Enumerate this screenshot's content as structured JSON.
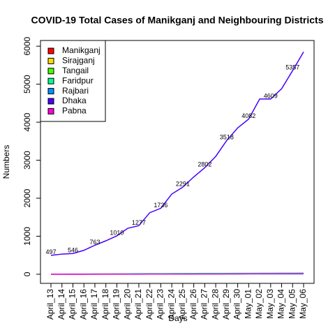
{
  "chart_data": {
    "type": "line",
    "title": "COVID-19 Total Cases of Manikganj and Neighbouring Districts",
    "x_label": "Days",
    "y_label": "Numbers",
    "categories": [
      "April_13",
      "April_14",
      "April_15",
      "April_16",
      "April_17",
      "April_18",
      "April_19",
      "April_20",
      "April_21",
      "April_22",
      "April_23",
      "April_24",
      "April_25",
      "April_26",
      "April_27",
      "April_28",
      "April_29",
      "April_30",
      "May_01",
      "May_02",
      "May_03",
      "May_04",
      "May_05",
      "May_06"
    ],
    "ylim": [
      -240,
      6150
    ],
    "yticks": [
      0,
      1000,
      2000,
      3000,
      4000,
      5000,
      6000
    ],
    "legend": "top-left",
    "series": [
      {
        "name": "Manikganj",
        "color": "#FF0000",
        "values": [
          1,
          1,
          2,
          2,
          3,
          3,
          4,
          5,
          6,
          7,
          8,
          9,
          10,
          11,
          12,
          13,
          14,
          15,
          16,
          17,
          18,
          19,
          20,
          21
        ]
      },
      {
        "name": "Sirajganj",
        "color": "#FFDB00",
        "values": [
          0,
          0,
          1,
          1,
          1,
          2,
          2,
          3,
          3,
          4,
          5,
          6,
          7,
          8,
          9,
          10,
          11,
          12,
          13,
          14,
          15,
          16,
          18,
          19
        ]
      },
      {
        "name": "Tangail",
        "color": "#49FF00",
        "values": [
          2,
          3,
          3,
          4,
          5,
          6,
          7,
          8,
          9,
          10,
          11,
          12,
          13,
          14,
          15,
          16,
          17,
          18,
          19,
          20,
          21,
          22,
          24,
          26
        ]
      },
      {
        "name": "Faridpur",
        "color": "#00FF92",
        "values": [
          3,
          4,
          5,
          6,
          7,
          8,
          10,
          12,
          14,
          16,
          18,
          20,
          21,
          22,
          23,
          24,
          25,
          26,
          27,
          28,
          29,
          30,
          31,
          32
        ]
      },
      {
        "name": "Rajbari",
        "color": "#0092FF",
        "values": [
          0,
          0,
          0,
          1,
          1,
          1,
          2,
          2,
          2,
          3,
          3,
          3,
          4,
          4,
          5,
          5,
          6,
          6,
          7,
          7,
          8,
          8,
          9,
          9
        ]
      },
      {
        "name": "Dhaka",
        "color": "#4900FF",
        "values": [
          497,
          530,
          546,
          630,
          763,
          880,
          1010,
          1210,
          1277,
          1620,
          1736,
          2110,
          2291,
          2560,
          2802,
          3100,
          3518,
          3850,
          4082,
          4609,
          4609,
          4880,
          5357,
          5850
        ],
        "value_labels": [
          "497",
          null,
          "546",
          null,
          "763",
          null,
          "1010",
          null,
          "1277",
          null,
          "1736",
          null,
          "2291",
          null,
          "2802",
          null,
          "3518",
          null,
          "4082",
          null,
          "4609",
          null,
          "5357",
          null
        ]
      },
      {
        "name": "Pabna",
        "color": "#FF00DB",
        "values": [
          1,
          1,
          1,
          2,
          2,
          3,
          3,
          4,
          4,
          5,
          5,
          6,
          6,
          7,
          8,
          9,
          10,
          11,
          12,
          13,
          14,
          15,
          16,
          17
        ]
      }
    ]
  }
}
